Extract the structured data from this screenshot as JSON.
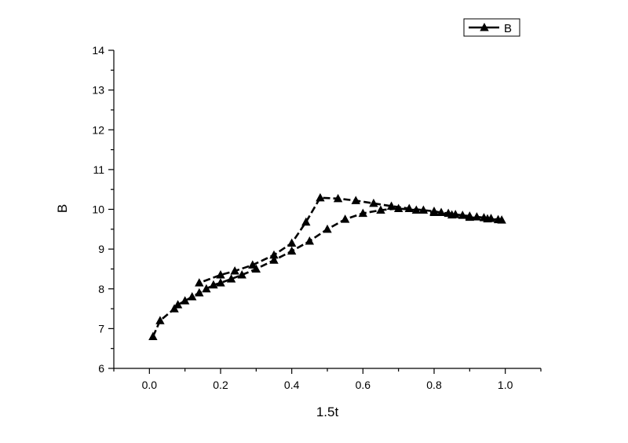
{
  "chart_data": {
    "type": "line",
    "title": "",
    "xlabel": "1.5t",
    "ylabel": "B",
    "xlim": [
      -0.1,
      1.1
    ],
    "ylim": [
      6,
      14
    ],
    "xticks": [
      0.0,
      0.2,
      0.4,
      0.6,
      0.8,
      1.0
    ],
    "xtick_labels": [
      "0.0",
      "0.2",
      "0.4",
      "0.6",
      "0.8",
      "1.0"
    ],
    "yticks": [
      6,
      7,
      8,
      9,
      10,
      11,
      12,
      13,
      14
    ],
    "ytick_labels": [
      "6",
      "7",
      "8",
      "9",
      "10",
      "11",
      "12",
      "13",
      "14"
    ],
    "grid": false,
    "legend_position": "top-right",
    "series": [
      {
        "name": "B",
        "color": "#000000",
        "marker": "triangle-up",
        "line_style": "dashed",
        "x": [
          0.01,
          0.03,
          0.07,
          0.08,
          0.1,
          0.12,
          0.14,
          0.16,
          0.18,
          0.2,
          0.23,
          0.26,
          0.3,
          0.35,
          0.4,
          0.45,
          0.5,
          0.55,
          0.6,
          0.65,
          0.7,
          0.75,
          0.8,
          0.85,
          0.9,
          0.95,
          0.99,
          0.98,
          0.96,
          0.94,
          0.92,
          0.9,
          0.88,
          0.86,
          0.84,
          0.82,
          0.8,
          0.77,
          0.73,
          0.68,
          0.63,
          0.58,
          0.53,
          0.48,
          0.44,
          0.4,
          0.35,
          0.29,
          0.24,
          0.2,
          0.14
        ],
        "y": [
          6.8,
          7.2,
          7.5,
          7.6,
          7.7,
          7.8,
          7.9,
          8.0,
          8.1,
          8.15,
          8.25,
          8.35,
          8.5,
          8.72,
          8.95,
          9.2,
          9.5,
          9.75,
          9.9,
          9.98,
          10.02,
          9.98,
          9.92,
          9.86,
          9.8,
          9.76,
          9.73,
          9.74,
          9.77,
          9.79,
          9.81,
          9.83,
          9.85,
          9.87,
          9.9,
          9.92,
          9.95,
          9.98,
          10.02,
          10.08,
          10.15,
          10.22,
          10.27,
          10.29,
          9.68,
          9.15,
          8.85,
          8.6,
          8.45,
          8.35,
          8.15
        ]
      }
    ]
  }
}
